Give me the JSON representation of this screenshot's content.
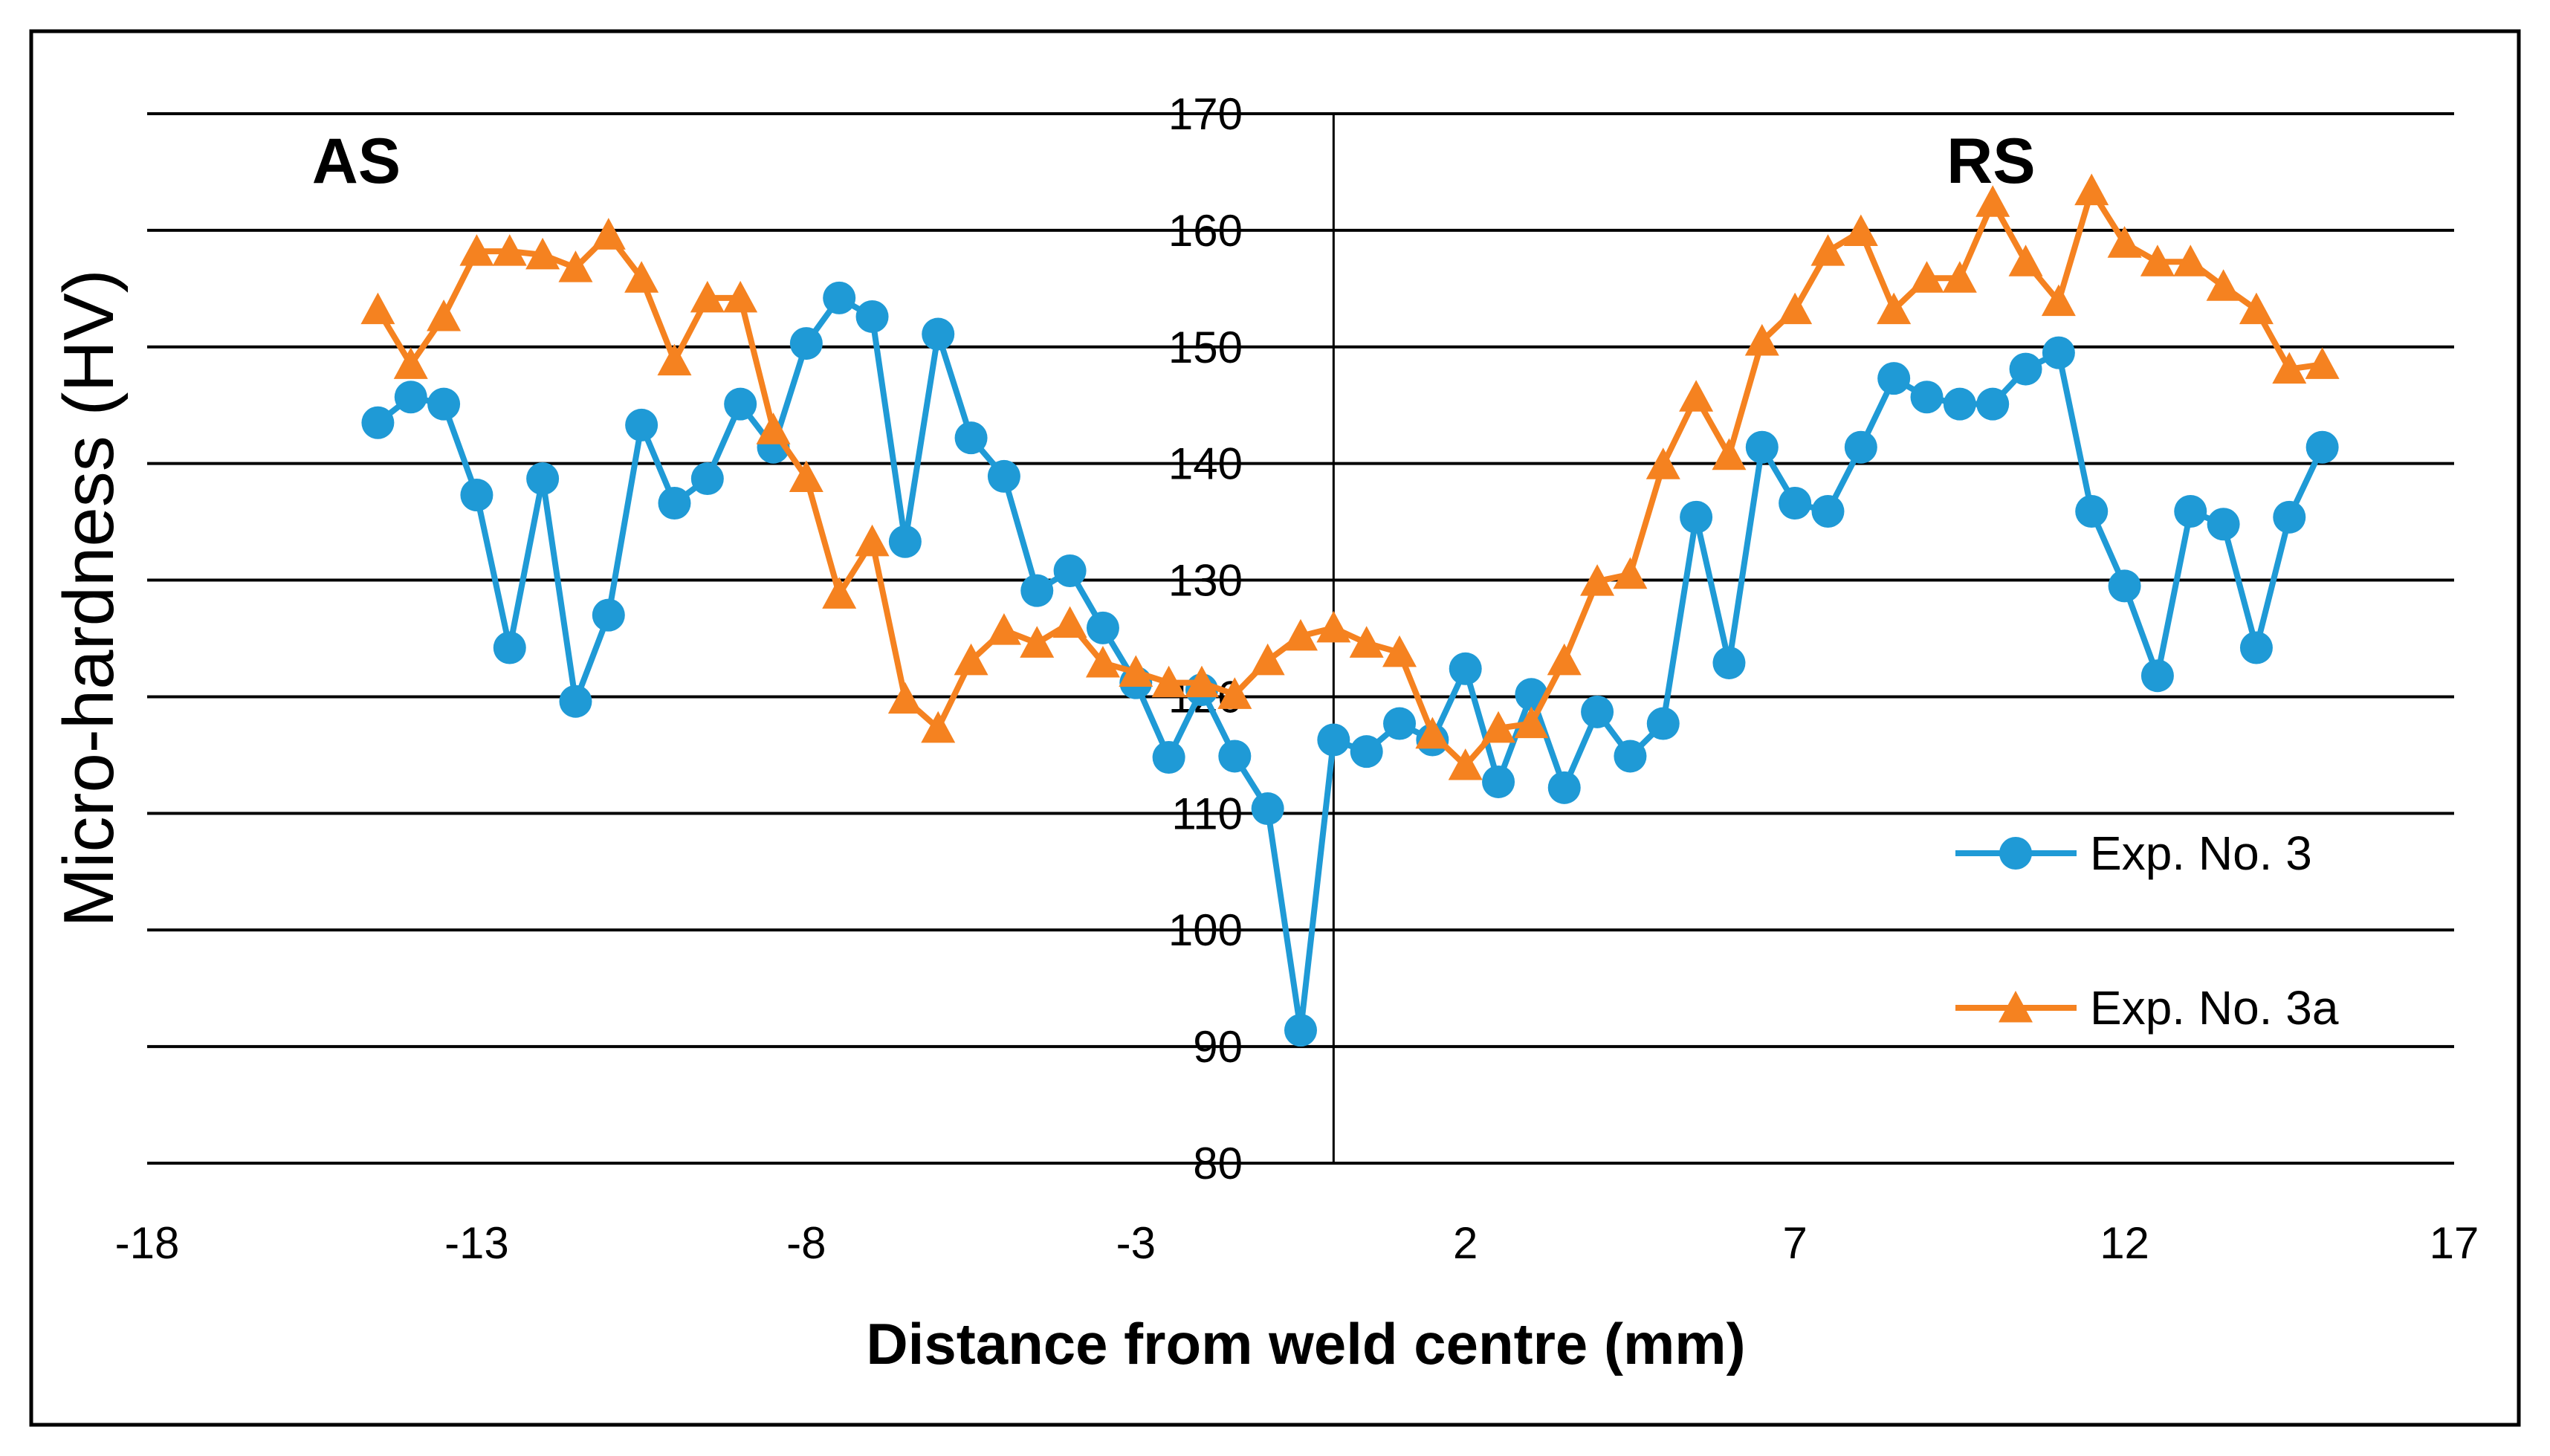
{
  "chart_data": {
    "type": "line",
    "title": "",
    "xlabel": "Distance from weld centre (mm)",
    "ylabel": "Micro-hardness (HV)",
    "xlim": [
      -18,
      17
    ],
    "ylim": [
      80,
      170
    ],
    "x_ticks": [
      -18,
      -13,
      -8,
      -3,
      2,
      7,
      12,
      17
    ],
    "y_ticks": [
      80,
      90,
      100,
      110,
      120,
      130,
      140,
      150,
      160,
      170
    ],
    "grid": true,
    "legend_position": "bottom-right",
    "annotations": [
      {
        "text": "AS",
        "x": -15.5,
        "y": 166
      },
      {
        "text": "RS",
        "x": 9.3,
        "y": 166
      }
    ],
    "series": [
      {
        "name": "Exp. No. 3",
        "color": "#1f9ad6",
        "marker": "circle",
        "x": [
          -14.5,
          -14,
          -13.5,
          -13,
          -12.5,
          -12,
          -11.5,
          -11,
          -10.5,
          -10,
          -9.5,
          -9,
          -8.5,
          -8,
          -7.5,
          -7,
          -6.5,
          -6,
          -5.5,
          -5,
          -4.5,
          -4,
          -3.5,
          -3,
          -2.5,
          -2,
          -1.5,
          -1,
          -0.5,
          0,
          0.5,
          1,
          1.5,
          2,
          2.5,
          3,
          3.5,
          4,
          4.5,
          5,
          5.5,
          6,
          6.5,
          7,
          7.5,
          8,
          8.5,
          9,
          9.5,
          10,
          10.5,
          11,
          11.5,
          12,
          12.5,
          13,
          13.5,
          14,
          14.5,
          15
        ],
        "y": [
          143.5,
          145.7,
          145.1,
          137.3,
          124.2,
          138.7,
          119.6,
          127,
          143.3,
          136.6,
          138.7,
          145.1,
          141.4,
          150.3,
          154.2,
          152.6,
          133.3,
          151.1,
          142.2,
          138.9,
          129.1,
          130.8,
          125.9,
          121.2,
          114.8,
          120.6,
          114.9,
          110.4,
          91.4,
          116.3,
          115.3,
          117.7,
          116.3,
          122.4,
          112.7,
          120.2,
          112.2,
          118.7,
          114.9,
          117.7,
          135.4,
          122.9,
          141.4,
          136.6,
          135.9,
          141.4,
          147.3,
          145.7,
          145.1,
          145.1,
          148.1,
          149.5,
          135.9,
          129.5,
          121.8,
          135.9,
          134.8,
          124.2,
          135.4,
          141.4
        ]
      },
      {
        "name": "Exp. No. 3a",
        "color": "#f58220",
        "marker": "triangle",
        "x": [
          -14.5,
          -14,
          -13.5,
          -13,
          -12.5,
          -12,
          -11.5,
          -11,
          -10.5,
          -10,
          -9.5,
          -9,
          -8.5,
          -8,
          -7.5,
          -7,
          -6.5,
          -6,
          -5.5,
          -5,
          -4.5,
          -4,
          -3.5,
          -3,
          -2.5,
          -2,
          -1.5,
          -1,
          -0.5,
          0,
          0.5,
          1,
          1.5,
          2,
          2.5,
          3,
          3.5,
          4,
          4.5,
          5,
          5.5,
          6,
          6.5,
          7,
          7.5,
          8,
          8.5,
          9,
          9.5,
          10,
          10.5,
          11,
          11.5,
          12,
          12.5,
          13,
          13.5,
          14,
          14.5,
          15
        ],
        "y": [
          153.2,
          148.5,
          152.6,
          158.2,
          158.2,
          157.9,
          156.8,
          159.6,
          155.9,
          148.8,
          154.2,
          154.2,
          142.9,
          138.8,
          128.8,
          133.3,
          119.8,
          117.3,
          123.1,
          125.7,
          124.6,
          126.3,
          122.9,
          122.1,
          121.2,
          121.2,
          120.2,
          123.1,
          125.2,
          125.9,
          124.6,
          123.8,
          116.8,
          114.1,
          117.3,
          117.7,
          123.1,
          129.9,
          130.5,
          139.9,
          145.7,
          140.7,
          150.5,
          153.2,
          158.2,
          159.9,
          153.2,
          155.9,
          155.9,
          162.4,
          157.3,
          153.9,
          163.4,
          158.9,
          157.3,
          157.3,
          155.2,
          153.2,
          148.1,
          148.5
        ]
      }
    ]
  }
}
